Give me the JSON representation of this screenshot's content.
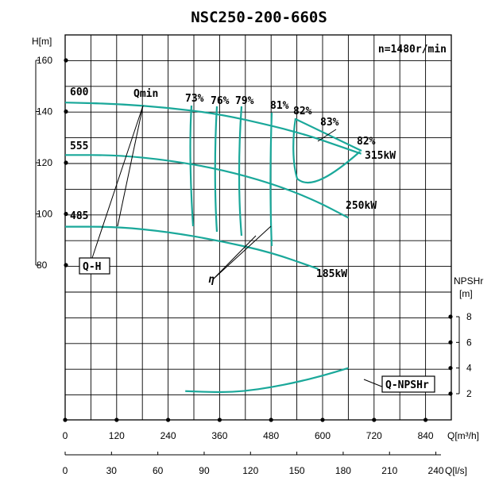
{
  "chart_data": {
    "type": "line",
    "title": "NSC250-200-660S",
    "speed_label": "n=1480r/min",
    "head_axis": {
      "label": "H[m]",
      "ticks": [
        160,
        140,
        120,
        100,
        80
      ],
      "range": [
        60,
        165
      ]
    },
    "npsh_axis": {
      "label": "NPSHr",
      "unit": "[m]",
      "ticks": [
        8,
        6,
        4,
        2
      ]
    },
    "x_axis_m3h": {
      "label": "Q[m³/h]",
      "ticks": [
        0,
        120,
        240,
        360,
        480,
        600,
        720,
        840
      ],
      "range": [
        0,
        900
      ]
    },
    "x_axis_ls": {
      "label": "Q[l/s]",
      "ticks": [
        0,
        30,
        60,
        90,
        120,
        150,
        180,
        210,
        240
      ]
    },
    "impeller_labels": [
      "600",
      "555",
      "485"
    ],
    "series": [
      {
        "name": "Q-H 600",
        "x": [
          0,
          120,
          240,
          360,
          480,
          560,
          630,
          690
        ],
        "y": [
          143.5,
          143,
          141.5,
          139,
          134.5,
          131,
          127,
          123.5
        ]
      },
      {
        "name": "Q-H 555",
        "x": [
          0,
          120,
          240,
          360,
          480,
          580,
          660
        ],
        "y": [
          123,
          123,
          121,
          117.5,
          112,
          105.5,
          98.5
        ]
      },
      {
        "name": "Q-H 485",
        "x": [
          0,
          120,
          240,
          360,
          480,
          590
        ],
        "y": [
          95,
          95,
          93,
          89.5,
          85,
          78.5
        ]
      },
      {
        "name": "NPSHr",
        "x": [
          280,
          360,
          420,
          480,
          540,
          600,
          660
        ],
        "y": [
          2.2,
          2.1,
          2.2,
          2.5,
          2.9,
          3.4,
          4.0
        ]
      }
    ],
    "efficiency_labels": [
      "73%",
      "76%",
      "79%",
      "81%",
      "82%",
      "83%",
      "82%"
    ],
    "power_labels": [
      "315kW",
      "250kW",
      "185kW"
    ],
    "annotations": {
      "qmin": "Qmin",
      "qh": "Q-H",
      "eta": "η",
      "npsh_box": "Q-NPSHr"
    }
  }
}
